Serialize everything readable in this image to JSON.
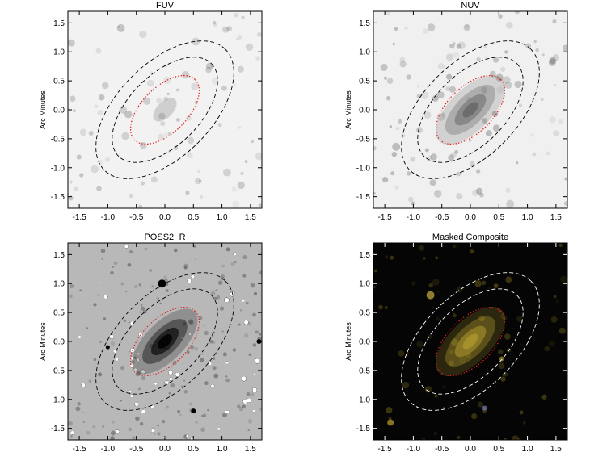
{
  "figure": {
    "panels": [
      {
        "title": "FUV",
        "ylabel": "Arc Minutes",
        "background": "#f2f2f2",
        "style": "light-sparse"
      },
      {
        "title": "NUV",
        "ylabel": "Arc Minutes",
        "background": "#f0f0f0",
        "style": "light-galaxy"
      },
      {
        "title": "POSS2−R",
        "ylabel": "Arc Minutes",
        "background": "#b8b8b8",
        "style": "grainy-galaxy"
      },
      {
        "title": "Masked Composite",
        "ylabel": "Arc Minutes",
        "background": "#050505",
        "style": "dark-color"
      }
    ]
  },
  "chart_data": [
    {
      "type": "image",
      "title": "FUV",
      "xlabel": "",
      "ylabel": "Arc Minutes",
      "xlim": [
        -1.7,
        1.7
      ],
      "ylim": [
        -1.7,
        1.7
      ],
      "xticks": [
        "-1.5",
        "-1.0",
        "-0.5",
        "0.0",
        "0.5",
        "1.0",
        "1.5"
      ],
      "yticks": [
        "-1.5",
        "-1.0",
        "-0.5",
        "0.0",
        "0.5",
        "1.0",
        "1.5"
      ],
      "ellipses": [
        {
          "style": "dotted",
          "color": "#e02020",
          "center": [
            0.0,
            0.0
          ],
          "semi_major": 0.75,
          "semi_minor": 0.4,
          "angle_deg": 45
        },
        {
          "style": "dashed",
          "color": "#000000",
          "center": [
            0.0,
            0.0
          ],
          "semi_major": 1.15,
          "semi_minor": 0.62,
          "angle_deg": 45
        },
        {
          "style": "dashed",
          "color": "#000000",
          "center": [
            0.0,
            0.0
          ],
          "semi_major": 1.5,
          "semi_minor": 0.82,
          "angle_deg": 45
        }
      ]
    },
    {
      "type": "image",
      "title": "NUV",
      "xlabel": "",
      "ylabel": "Arc Minutes",
      "xlim": [
        -1.7,
        1.7
      ],
      "ylim": [
        -1.7,
        1.7
      ],
      "xticks": [
        "-1.5",
        "-1.0",
        "-0.5",
        "0.0",
        "0.5",
        "1.0",
        "1.5"
      ],
      "yticks": [
        "-1.5",
        "-1.0",
        "-0.5",
        "0.0",
        "0.5",
        "1.0",
        "1.5"
      ],
      "ellipses": [
        {
          "style": "dotted",
          "color": "#e02020",
          "center": [
            0.0,
            0.0
          ],
          "semi_major": 0.75,
          "semi_minor": 0.4,
          "angle_deg": 45
        },
        {
          "style": "dashed",
          "color": "#000000",
          "center": [
            0.0,
            0.0
          ],
          "semi_major": 1.15,
          "semi_minor": 0.62,
          "angle_deg": 45
        },
        {
          "style": "dashed",
          "color": "#000000",
          "center": [
            0.0,
            0.0
          ],
          "semi_major": 1.5,
          "semi_minor": 0.82,
          "angle_deg": 45
        }
      ]
    },
    {
      "type": "image",
      "title": "POSS2−R",
      "xlabel": "",
      "ylabel": "Arc Minutes",
      "xlim": [
        -1.7,
        1.7
      ],
      "ylim": [
        -1.7,
        1.7
      ],
      "xticks": [
        "-1.5",
        "-1.0",
        "-0.5",
        "0.0",
        "0.5",
        "1.0",
        "1.5"
      ],
      "yticks": [
        "-1.5",
        "-1.0",
        "-0.5",
        "0.0",
        "0.5",
        "1.0",
        "1.5"
      ],
      "ellipses": [
        {
          "style": "dotted",
          "color": "#e02020",
          "center": [
            0.0,
            0.0
          ],
          "semi_major": 0.75,
          "semi_minor": 0.4,
          "angle_deg": 45
        },
        {
          "style": "dashed",
          "color": "#000000",
          "center": [
            0.0,
            0.0
          ],
          "semi_major": 1.15,
          "semi_minor": 0.62,
          "angle_deg": 45
        },
        {
          "style": "dashed",
          "color": "#000000",
          "center": [
            0.0,
            0.0
          ],
          "semi_major": 1.5,
          "semi_minor": 0.82,
          "angle_deg": 45
        }
      ]
    },
    {
      "type": "image",
      "title": "Masked Composite",
      "xlabel": "",
      "ylabel": "Arc Minutes",
      "xlim": [
        -1.7,
        1.7
      ],
      "ylim": [
        -1.7,
        1.7
      ],
      "xticks": [
        "-1.5",
        "-1.0",
        "-0.5",
        "0.0",
        "0.5",
        "1.0",
        "1.5"
      ],
      "yticks": [
        "-1.5",
        "-1.0",
        "-0.5",
        "0.0",
        "0.5",
        "1.0",
        "1.5"
      ],
      "ellipses": [
        {
          "style": "dotted",
          "color": "#e02020",
          "center": [
            0.0,
            0.0
          ],
          "semi_major": 0.75,
          "semi_minor": 0.4,
          "angle_deg": 45
        },
        {
          "style": "dashed",
          "color": "#ffffff",
          "center": [
            0.0,
            0.0
          ],
          "semi_major": 1.15,
          "semi_minor": 0.62,
          "angle_deg": 45
        },
        {
          "style": "dashed",
          "color": "#ffffff",
          "center": [
            0.0,
            0.0
          ],
          "semi_major": 1.5,
          "semi_minor": 0.82,
          "angle_deg": 45
        }
      ]
    }
  ]
}
